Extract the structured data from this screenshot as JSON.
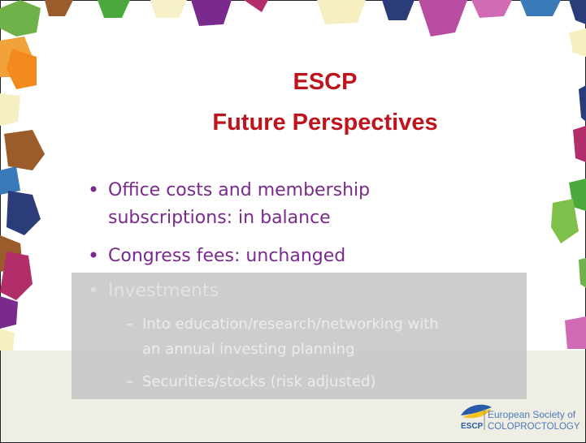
{
  "slide": {
    "title": [
      "ESCP",
      "Future Perspectives"
    ],
    "bullets": [
      {
        "lines": [
          "Office costs and membership",
          "subscriptions: in balance"
        ]
      },
      {
        "lines": [
          "Congress fees: unchanged"
        ]
      },
      {
        "lines": [
          "Investments"
        ],
        "sub": [
          {
            "lines": [
              "Into education/research/networking with",
              "an annual investing planning"
            ]
          },
          {
            "lines": [
              "Securities/stocks (risk adjusted)"
            ]
          }
        ]
      }
    ],
    "logo": {
      "mark": "ESCP",
      "line1": "European Society of",
      "line2": "COLOPROCTOLOGY"
    }
  }
}
